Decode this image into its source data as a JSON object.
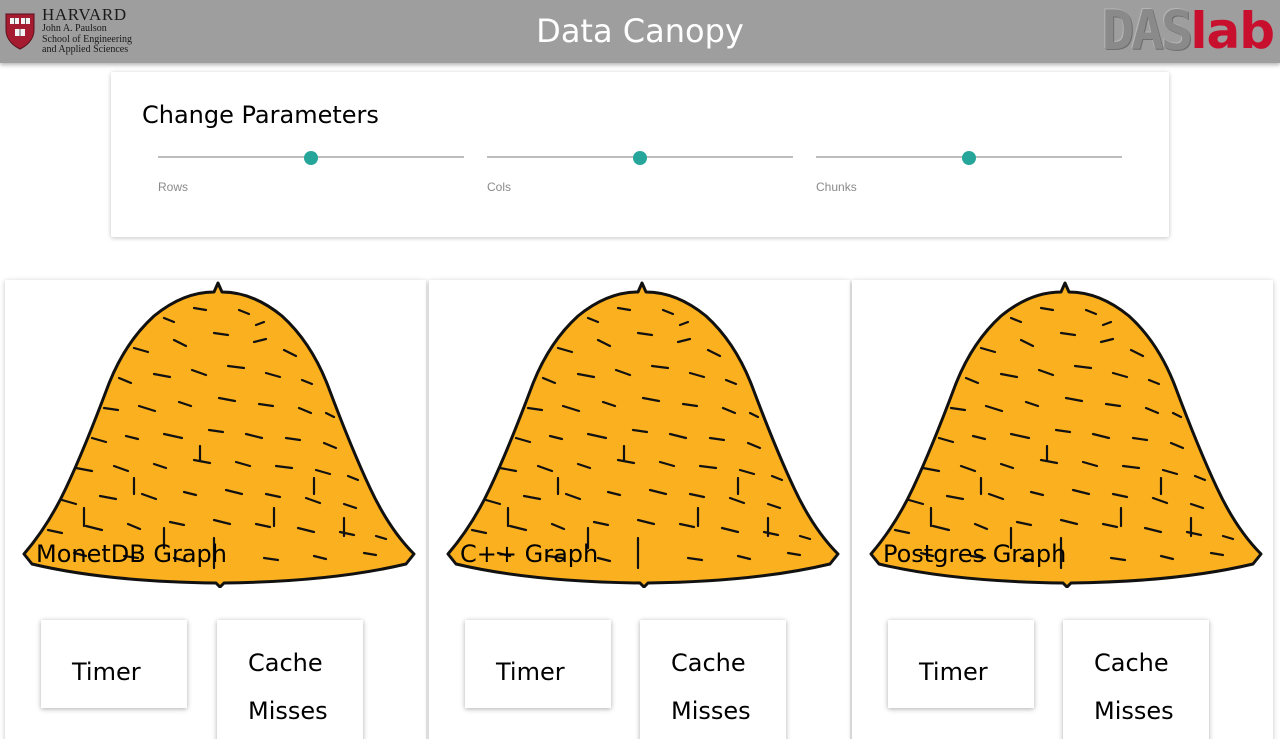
{
  "header": {
    "title": "Data Canopy",
    "harvard": {
      "name": "HARVARD",
      "line1": "John A. Paulson",
      "line2": "School of Engineering",
      "line3": "and Applied Sciences"
    },
    "daslab": {
      "das": "DAS",
      "lab": "lab"
    },
    "colors": {
      "bar": "#9e9e9e",
      "daslab_red": "#c8102e"
    }
  },
  "params": {
    "title": "Change Parameters",
    "sliders": [
      {
        "label": "Rows",
        "value": 0.5
      },
      {
        "label": "Cols",
        "value": 0.5
      },
      {
        "label": "Chunks",
        "value": 0.5
      }
    ],
    "accent": "#26a69a"
  },
  "graphs": [
    {
      "title": "MonetDB Graph",
      "timer": "Timer",
      "cache1": "Cache",
      "cache2": "Misses",
      "image": "haystack"
    },
    {
      "title": "C++ Graph",
      "timer": "Timer",
      "cache1": "Cache",
      "cache2": "Misses",
      "image": "haystack"
    },
    {
      "title": "Postgres Graph",
      "timer": "Timer",
      "cache1": "Cache",
      "cache2": "Misses",
      "image": "haystack"
    }
  ]
}
